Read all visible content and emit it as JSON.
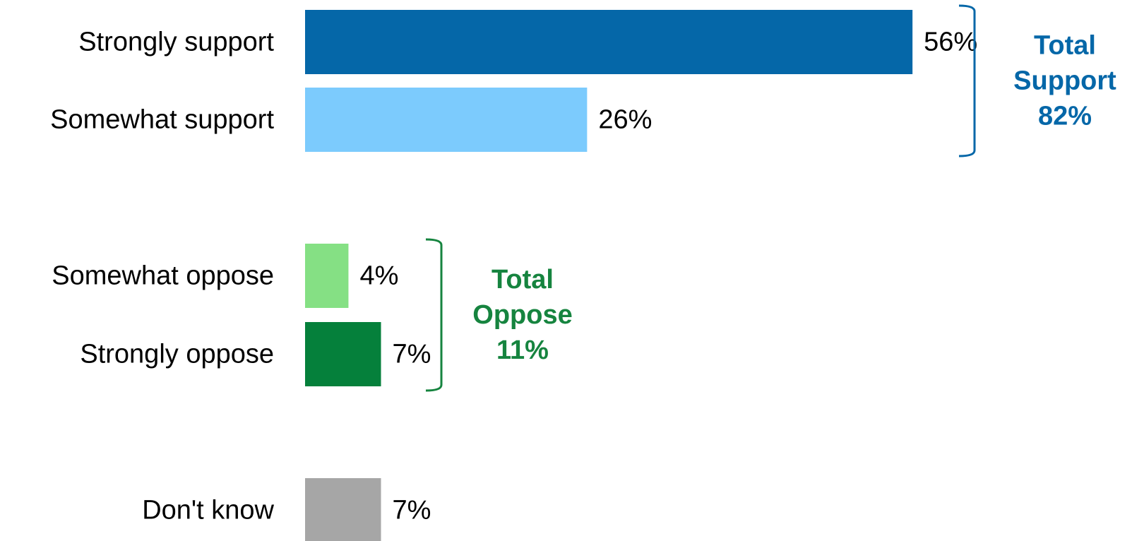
{
  "chart_data": {
    "type": "bar",
    "orientation": "horizontal",
    "categories": [
      "Strongly support",
      "Somewhat support",
      "Somewhat oppose",
      "Strongly oppose",
      "Don't know"
    ],
    "values": [
      56,
      26,
      4,
      7,
      7
    ],
    "value_labels": [
      "56%",
      "26%",
      "4%",
      "7%",
      "7%"
    ],
    "colors": [
      "#0567A8",
      "#7CCBFD",
      "#85E084",
      "#05803B",
      "#A6A6A6"
    ],
    "unit": "%",
    "xlim": [
      0,
      56
    ],
    "grid": false,
    "legend": "none",
    "groups": [
      {
        "lines": [
          "Total",
          "Support",
          "82%"
        ],
        "members": [
          0,
          1
        ],
        "value": 82,
        "color": "#0567A8"
      },
      {
        "lines": [
          "Total",
          "Oppose",
          "11%"
        ],
        "members": [
          2,
          3
        ],
        "value": 11,
        "color": "#16843F"
      }
    ]
  }
}
